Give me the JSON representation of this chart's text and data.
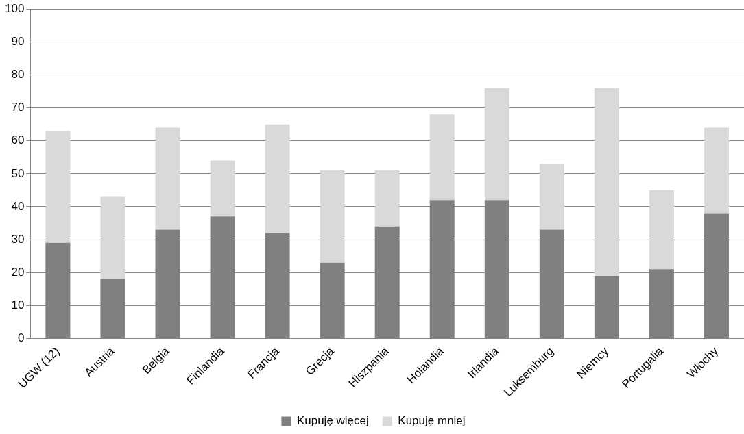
{
  "chart_data": {
    "type": "bar",
    "stacked": true,
    "categories": [
      "UGW (12)",
      "Austria",
      "Belgia",
      "Finlandia",
      "Francja",
      "Grecja",
      "Hiszpania",
      "Holandia",
      "Irlandia",
      "Luksemburg",
      "Niemcy",
      "Portugalia",
      "Włochy"
    ],
    "series": [
      {
        "name": "Kupuję więcej",
        "color": "#808080",
        "values": [
          29,
          18,
          33,
          37,
          32,
          23,
          34,
          42,
          42,
          33,
          19,
          21,
          38
        ]
      },
      {
        "name": "Kupuję mniej",
        "color": "#d9d9d9",
        "values": [
          34,
          25,
          31,
          17,
          33,
          28,
          17,
          26,
          34,
          20,
          57,
          24,
          26
        ]
      }
    ],
    "ylim": [
      0,
      100
    ],
    "yticks": [
      0,
      10,
      20,
      30,
      40,
      50,
      60,
      70,
      80,
      90,
      100
    ],
    "grid": "y",
    "legend": "bottom"
  }
}
